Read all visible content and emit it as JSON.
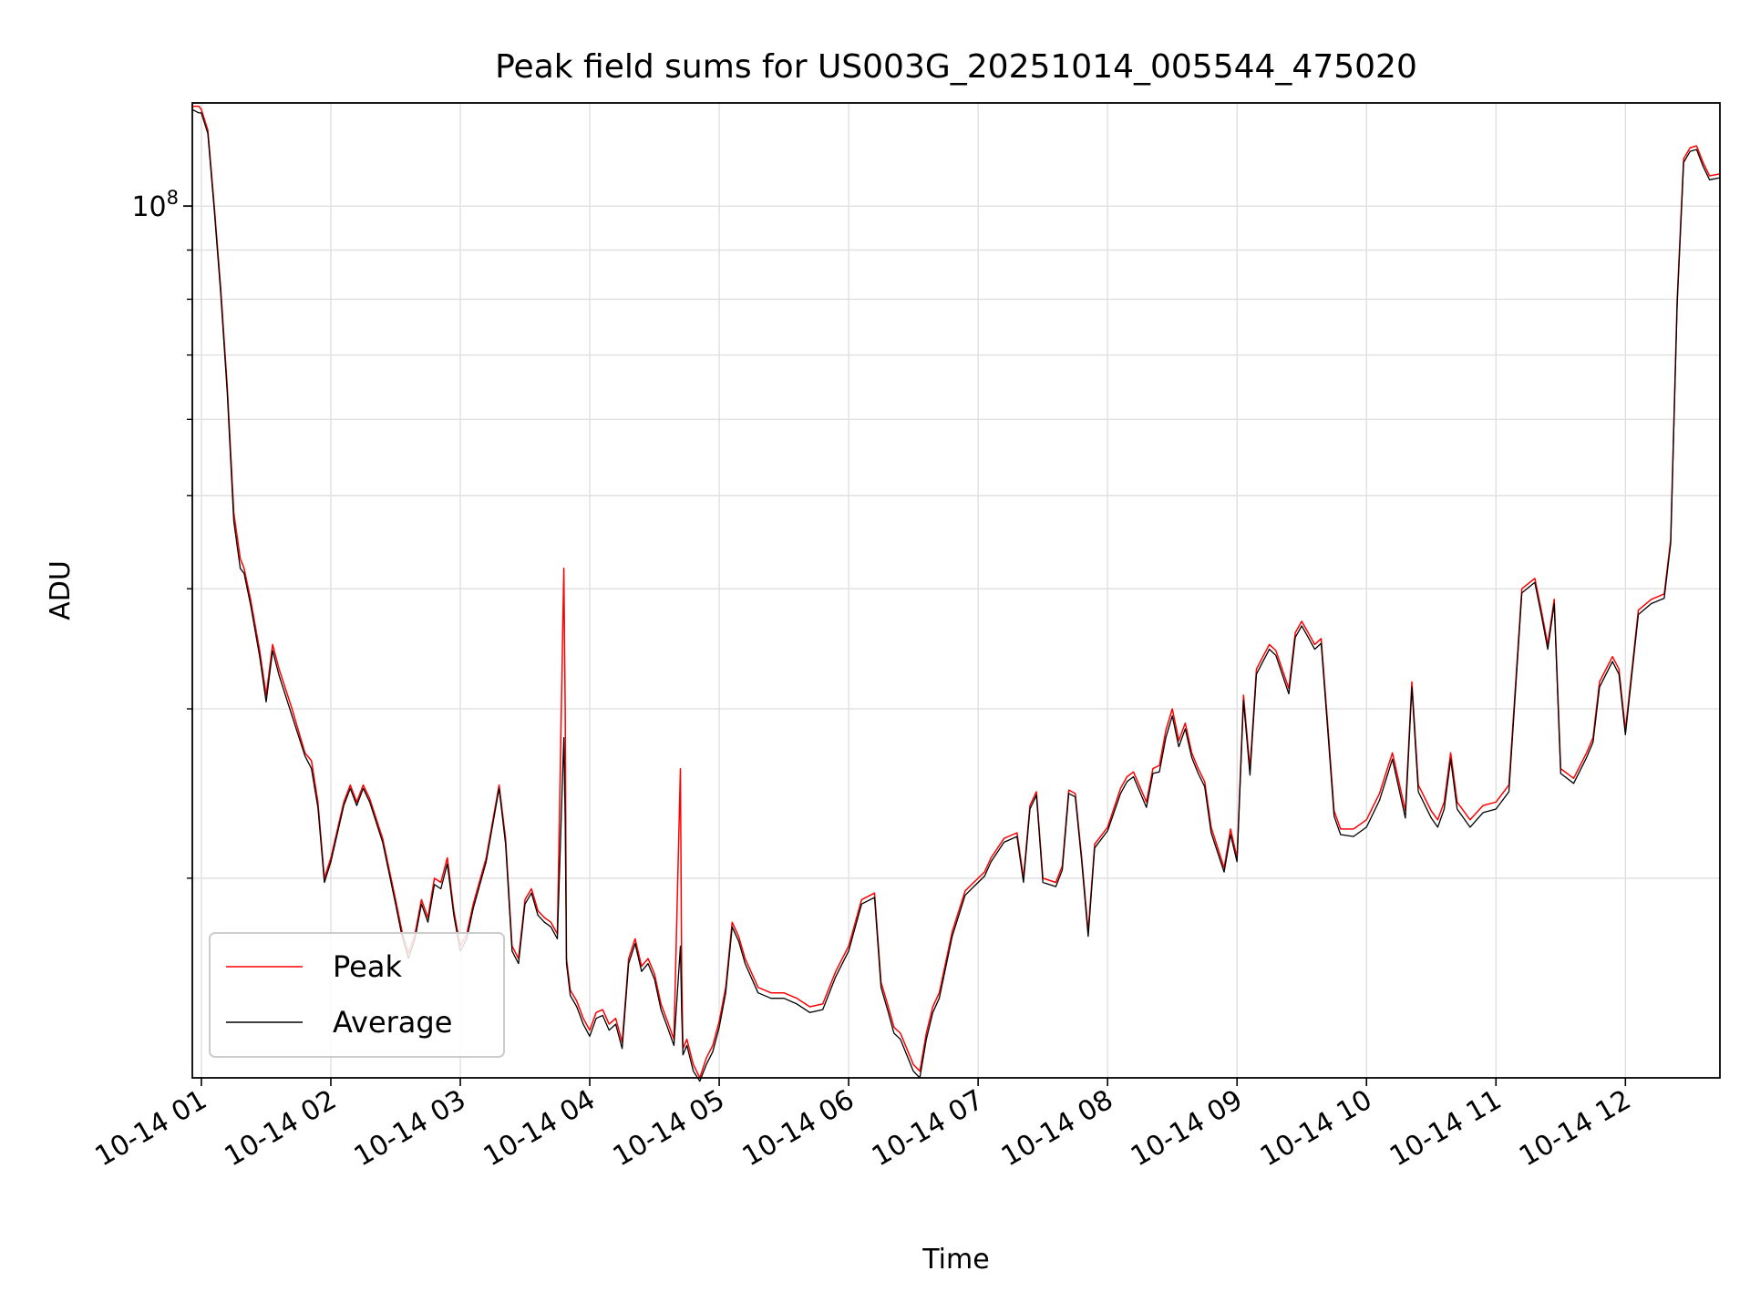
{
  "chart_data": {
    "type": "line",
    "title": "Peak field sums for US003G_20251014_005544_475020",
    "xlabel": "Time",
    "ylabel": "ADU",
    "yscale": "log",
    "ylim": [
      12400000,
      128000000
    ],
    "xlim": [
      0.93,
      12.73
    ],
    "x_unit": "hours on 2025-10-14",
    "x_ticks": [
      {
        "value": 1,
        "label": "10-14 01"
      },
      {
        "value": 2,
        "label": "10-14 02"
      },
      {
        "value": 3,
        "label": "10-14 03"
      },
      {
        "value": 4,
        "label": "10-14 04"
      },
      {
        "value": 5,
        "label": "10-14 05"
      },
      {
        "value": 6,
        "label": "10-14 06"
      },
      {
        "value": 7,
        "label": "10-14 07"
      },
      {
        "value": 8,
        "label": "10-14 08"
      },
      {
        "value": 9,
        "label": "10-14 09"
      },
      {
        "value": 10,
        "label": "10-14 10"
      },
      {
        "value": 11,
        "label": "10-14 11"
      },
      {
        "value": 12,
        "label": "10-14 12"
      }
    ],
    "y_major_ticks": [
      {
        "value": 100000000,
        "base": "10",
        "exp": "8"
      }
    ],
    "y_minor_ticks": [
      20000000,
      30000000,
      40000000,
      50000000,
      60000000,
      70000000,
      80000000,
      90000000
    ],
    "legend": {
      "position": "lower-left",
      "entries": [
        "Peak",
        "Average"
      ]
    },
    "grid": true,
    "series": [
      {
        "name": "Peak",
        "color": "#ff0000",
        "x": [
          0.93,
          0.98,
          1.0,
          1.05,
          1.1,
          1.15,
          1.2,
          1.25,
          1.3,
          1.33,
          1.38,
          1.45,
          1.5,
          1.55,
          1.6,
          1.7,
          1.8,
          1.85,
          1.9,
          1.95,
          2.0,
          2.1,
          2.15,
          2.2,
          2.25,
          2.3,
          2.4,
          2.5,
          2.55,
          2.6,
          2.65,
          2.7,
          2.75,
          2.8,
          2.85,
          2.9,
          2.95,
          3.0,
          3.05,
          3.1,
          3.2,
          3.3,
          3.35,
          3.4,
          3.45,
          3.5,
          3.55,
          3.6,
          3.65,
          3.7,
          3.75,
          3.8,
          3.81,
          3.82,
          3.85,
          3.9,
          3.95,
          4.0,
          4.05,
          4.1,
          4.15,
          4.2,
          4.25,
          4.3,
          4.35,
          4.4,
          4.45,
          4.5,
          4.55,
          4.6,
          4.65,
          4.7,
          4.71,
          4.72,
          4.75,
          4.8,
          4.85,
          4.9,
          4.95,
          5.0,
          5.05,
          5.1,
          5.15,
          5.2,
          5.3,
          5.4,
          5.5,
          5.6,
          5.7,
          5.8,
          5.9,
          6.0,
          6.1,
          6.2,
          6.25,
          6.3,
          6.35,
          6.4,
          6.5,
          6.55,
          6.6,
          6.65,
          6.7,
          6.8,
          6.9,
          7.0,
          7.05,
          7.1,
          7.2,
          7.3,
          7.35,
          7.4,
          7.45,
          7.5,
          7.6,
          7.65,
          7.7,
          7.75,
          7.8,
          7.85,
          7.9,
          8.0,
          8.1,
          8.15,
          8.2,
          8.3,
          8.35,
          8.4,
          8.45,
          8.5,
          8.55,
          8.6,
          8.65,
          8.7,
          8.75,
          8.8,
          8.9,
          8.95,
          9.0,
          9.05,
          9.1,
          9.15,
          9.2,
          9.25,
          9.3,
          9.4,
          9.45,
          9.5,
          9.55,
          9.6,
          9.65,
          9.7,
          9.75,
          9.8,
          9.9,
          10.0,
          10.1,
          10.2,
          10.3,
          10.35,
          10.4,
          10.5,
          10.55,
          10.6,
          10.65,
          10.7,
          10.8,
          10.9,
          11.0,
          11.1,
          11.2,
          11.3,
          11.35,
          11.4,
          11.45,
          11.5,
          11.6,
          11.7,
          11.75,
          11.8,
          11.9,
          11.95,
          12.0,
          12.1,
          12.2,
          12.3,
          12.35,
          12.4,
          12.45,
          12.5,
          12.55,
          12.6,
          12.65,
          12.73
        ],
        "values": [
          127000000,
          127000000,
          126000000,
          120000000,
          100000000,
          82000000,
          65000000,
          48000000,
          43000000,
          42000000,
          39000000,
          34500000,
          31000000,
          35000000,
          33000000,
          30000000,
          27000000,
          26500000,
          24000000,
          20000000,
          21000000,
          24000000,
          25000000,
          24000000,
          25000000,
          24200000,
          22000000,
          19000000,
          17600000,
          16700000,
          17500000,
          19000000,
          18200000,
          20000000,
          19800000,
          21000000,
          18500000,
          17000000,
          17500000,
          18800000,
          21000000,
          25000000,
          22000000,
          17000000,
          16500000,
          19000000,
          19500000,
          18500000,
          18200000,
          18000000,
          17500000,
          42000000,
          30000000,
          16500000,
          15300000,
          14900000,
          14300000,
          13900000,
          14500000,
          14600000,
          14100000,
          14300000,
          13500000,
          16500000,
          17300000,
          16200000,
          16500000,
          15900000,
          14800000,
          14200000,
          13600000,
          26000000,
          16000000,
          13300000,
          13600000,
          12800000,
          12400000,
          13000000,
          13400000,
          14200000,
          15400000,
          18000000,
          17400000,
          16500000,
          15400000,
          15200000,
          15200000,
          15000000,
          14700000,
          14800000,
          16000000,
          17000000,
          19000000,
          19300000,
          15600000,
          14800000,
          14000000,
          13800000,
          12800000,
          12600000,
          13800000,
          14700000,
          15200000,
          17600000,
          19400000,
          20000000,
          20300000,
          21000000,
          22000000,
          22300000,
          20000000,
          23800000,
          24600000,
          20000000,
          19800000,
          20600000,
          24700000,
          24500000,
          21000000,
          17600000,
          21700000,
          22600000,
          24800000,
          25500000,
          25800000,
          24000000,
          26000000,
          26200000,
          28500000,
          30000000,
          27800000,
          29000000,
          27000000,
          26000000,
          25200000,
          22600000,
          20500000,
          22500000,
          21000000,
          31000000,
          26000000,
          33000000,
          34000000,
          35000000,
          34500000,
          31500000,
          36000000,
          37000000,
          36000000,
          35000000,
          35500000,
          29000000,
          23500000,
          22500000,
          22500000,
          23000000,
          24500000,
          27000000,
          23500000,
          32000000,
          25000000,
          23500000,
          23000000,
          24000000,
          27000000,
          24000000,
          23000000,
          23800000,
          24000000,
          25000000,
          40000000,
          41000000,
          38000000,
          35000000,
          39000000,
          26000000,
          25400000,
          27000000,
          28000000,
          32000000,
          34000000,
          33000000,
          28500000,
          38000000,
          39000000,
          39500000,
          45000000,
          80000000,
          112000000,
          115000000,
          115500000,
          111000000,
          107500000,
          108000000
        ]
      },
      {
        "name": "Average",
        "color": "#000000",
        "x": [
          0.93,
          0.98,
          1.0,
          1.05,
          1.1,
          1.15,
          1.2,
          1.25,
          1.3,
          1.33,
          1.38,
          1.45,
          1.5,
          1.55,
          1.6,
          1.7,
          1.8,
          1.85,
          1.9,
          1.95,
          2.0,
          2.1,
          2.15,
          2.2,
          2.25,
          2.3,
          2.4,
          2.5,
          2.55,
          2.6,
          2.65,
          2.7,
          2.75,
          2.8,
          2.85,
          2.9,
          2.95,
          3.0,
          3.05,
          3.1,
          3.2,
          3.3,
          3.35,
          3.4,
          3.45,
          3.5,
          3.55,
          3.6,
          3.65,
          3.7,
          3.75,
          3.8,
          3.81,
          3.82,
          3.85,
          3.9,
          3.95,
          4.0,
          4.05,
          4.1,
          4.15,
          4.2,
          4.25,
          4.3,
          4.35,
          4.4,
          4.45,
          4.5,
          4.55,
          4.6,
          4.65,
          4.7,
          4.71,
          4.72,
          4.75,
          4.8,
          4.85,
          4.9,
          4.95,
          5.0,
          5.05,
          5.1,
          5.15,
          5.2,
          5.3,
          5.4,
          5.5,
          5.6,
          5.7,
          5.8,
          5.9,
          6.0,
          6.1,
          6.2,
          6.25,
          6.3,
          6.35,
          6.4,
          6.5,
          6.55,
          6.6,
          6.65,
          6.7,
          6.8,
          6.9,
          7.0,
          7.05,
          7.1,
          7.2,
          7.3,
          7.35,
          7.4,
          7.45,
          7.5,
          7.6,
          7.65,
          7.7,
          7.75,
          7.8,
          7.85,
          7.9,
          8.0,
          8.1,
          8.15,
          8.2,
          8.3,
          8.35,
          8.4,
          8.45,
          8.5,
          8.55,
          8.6,
          8.65,
          8.7,
          8.75,
          8.8,
          8.9,
          8.95,
          9.0,
          9.05,
          9.1,
          9.15,
          9.2,
          9.25,
          9.3,
          9.4,
          9.45,
          9.5,
          9.55,
          9.6,
          9.65,
          9.7,
          9.75,
          9.8,
          9.9,
          10.0,
          10.1,
          10.2,
          10.3,
          10.35,
          10.4,
          10.5,
          10.55,
          10.6,
          10.65,
          10.7,
          10.8,
          10.9,
          11.0,
          11.1,
          11.2,
          11.3,
          11.35,
          11.4,
          11.45,
          11.5,
          11.6,
          11.7,
          11.75,
          11.8,
          11.9,
          11.95,
          12.0,
          12.1,
          12.2,
          12.3,
          12.35,
          12.4,
          12.45,
          12.5,
          12.55,
          12.6,
          12.65,
          12.73
        ],
        "values": [
          126000000,
          125000000,
          125000000,
          119000000,
          99000000,
          81000000,
          64000000,
          47000000,
          42000000,
          41500000,
          38500000,
          34000000,
          30500000,
          34500000,
          32500000,
          29500000,
          26800000,
          26000000,
          23700000,
          19800000,
          20800000,
          23800000,
          24800000,
          23800000,
          24800000,
          24000000,
          21800000,
          18800000,
          17400000,
          16500000,
          17300000,
          18800000,
          18000000,
          19700000,
          19500000,
          20700000,
          18300000,
          16800000,
          17300000,
          18600000,
          20800000,
          24800000,
          21700000,
          16800000,
          16300000,
          18800000,
          19300000,
          18300000,
          18000000,
          17800000,
          17300000,
          28000000,
          23000000,
          16300000,
          15100000,
          14700000,
          14100000,
          13700000,
          14300000,
          14400000,
          13900000,
          14100000,
          13300000,
          16300000,
          17100000,
          16000000,
          16300000,
          15700000,
          14600000,
          14000000,
          13400000,
          17000000,
          14500000,
          13100000,
          13400000,
          12600000,
          12300000,
          12800000,
          13200000,
          14000000,
          15200000,
          17800000,
          17200000,
          16300000,
          15200000,
          15000000,
          15000000,
          14800000,
          14500000,
          14600000,
          15800000,
          16800000,
          18800000,
          19100000,
          15400000,
          14600000,
          13800000,
          13600000,
          12600000,
          12400000,
          13600000,
          14500000,
          15000000,
          17400000,
          19200000,
          19800000,
          20100000,
          20800000,
          21800000,
          22100000,
          19800000,
          23600000,
          24400000,
          19800000,
          19600000,
          20400000,
          24500000,
          24300000,
          20800000,
          17400000,
          21500000,
          22400000,
          24500000,
          25200000,
          25500000,
          23700000,
          25700000,
          25800000,
          28000000,
          29500000,
          27400000,
          28600000,
          26700000,
          25700000,
          24900000,
          22300000,
          20300000,
          22200000,
          20800000,
          30600000,
          25600000,
          32600000,
          33600000,
          34600000,
          34100000,
          31100000,
          35600000,
          36600000,
          35600000,
          34600000,
          35100000,
          28600000,
          23200000,
          22200000,
          22100000,
          22600000,
          24100000,
          26600000,
          23100000,
          31600000,
          24600000,
          23100000,
          22600000,
          23600000,
          26600000,
          23600000,
          22600000,
          23400000,
          23600000,
          24600000,
          39600000,
          40600000,
          37600000,
          34600000,
          38600000,
          25700000,
          25100000,
          26700000,
          27700000,
          31600000,
          33600000,
          32600000,
          28200000,
          37600000,
          38600000,
          39100000,
          44600000,
          79000000,
          111000000,
          114000000,
          114500000,
          110000000,
          106500000,
          107000000
        ]
      }
    ]
  }
}
